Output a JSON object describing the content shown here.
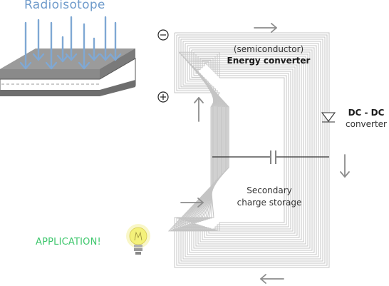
{
  "labels": {
    "title": "Radioisotope",
    "semiconductor": "(semiconductor)",
    "energy_converter": "Energy converter",
    "dcdc_top": "DC - DC",
    "dcdc_bottom": "converter",
    "secondary_top": "Secondary",
    "secondary_bottom": "charge storage",
    "application": "APPLICATION!"
  },
  "symbols": {
    "minus": "⊖",
    "plus": "⊕"
  },
  "colors": {
    "isotope_arrows": "#7fa8d4",
    "layer_top": "#8a8a8a",
    "layer_edge": "#6e6e6e",
    "wires": "#c4c4c4",
    "flow_arrows": "#8c8c8c",
    "application": "#3fc76d",
    "bulb": "#f4f17a"
  },
  "icons": [
    "minus-terminal-icon",
    "plus-terminal-icon",
    "diode-icon",
    "capacitor-icon",
    "lightbulb-icon",
    "flow-arrow-icon"
  ]
}
